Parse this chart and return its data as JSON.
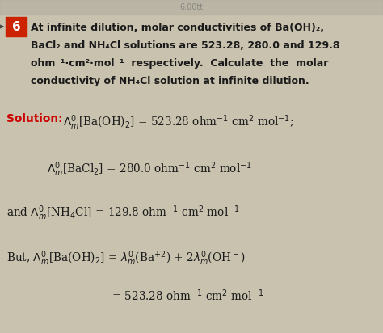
{
  "bg_color": "#c8c2ae",
  "text_color": "#1a1a1a",
  "solution_color": "#cc0000",
  "badge_color": "#cc2200",
  "badge_text": "6",
  "arrow_color": "#444444",
  "font_size_body": 9.0,
  "font_size_eq": 9.8,
  "title_text_1": "At infinite dilution, molar conductivities of Ba(OH)₂,",
  "title_text_2": "BaCl₂ and NH₄Cl solutions are 523.28, 280.0 and 129.8",
  "title_text_3": "ohm⁻¹·cm²·mol⁻¹  respectively.  Calculate  the  molar",
  "title_text_4": "conductivity of NH₄Cl solution at infinite dilution."
}
